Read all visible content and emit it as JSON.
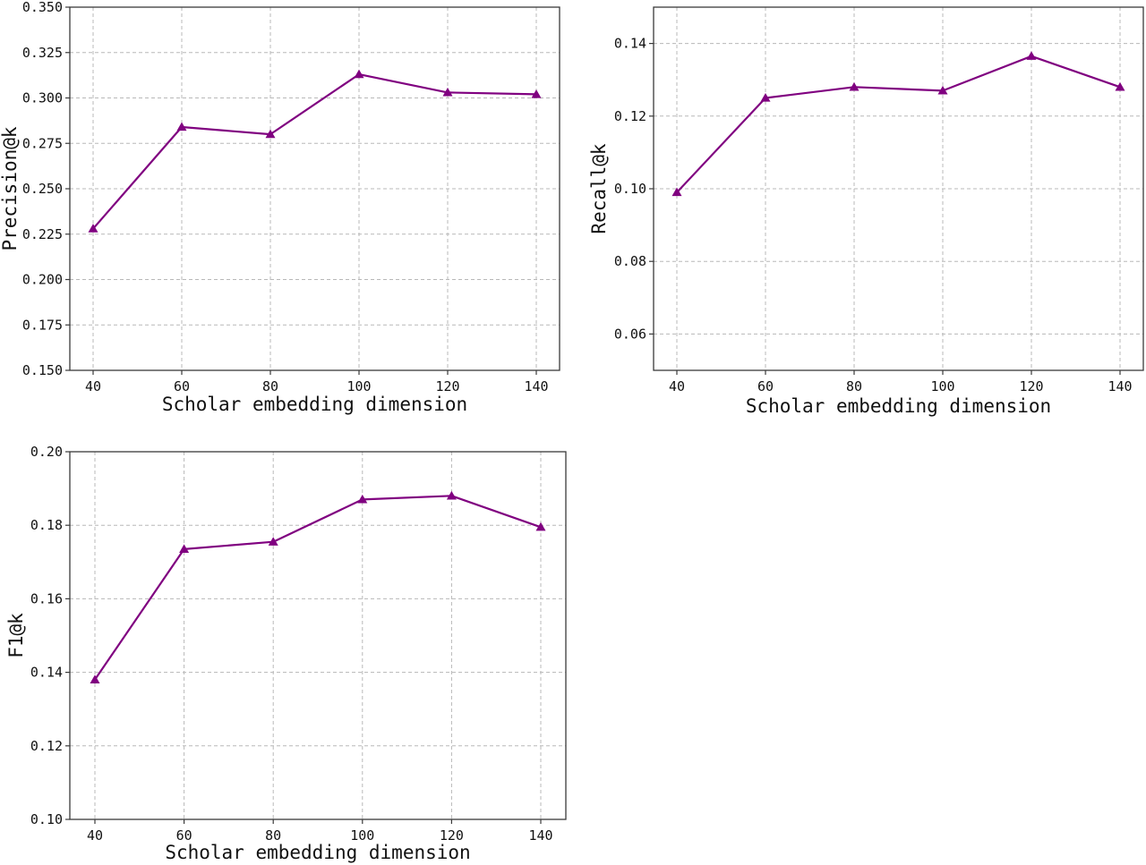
{
  "colors": {
    "series": "#800080",
    "axis": "#3a3a3a",
    "grid": "#b8b8b8"
  },
  "chart_data": [
    {
      "type": "line",
      "marker": "triangle",
      "xlabel": "Scholar embedding dimension",
      "ylabel": "Precision@k",
      "x": [
        40,
        60,
        80,
        100,
        120,
        140
      ],
      "series": [
        {
          "values": [
            0.228,
            0.284,
            0.28,
            0.313,
            0.303,
            0.302
          ]
        }
      ],
      "ylim": [
        0.15,
        0.35
      ],
      "yticks": [
        0.15,
        0.175,
        0.2,
        0.225,
        0.25,
        0.275,
        0.3,
        0.325,
        0.35
      ],
      "ytick_labels": [
        "0.150",
        "0.175",
        "0.200",
        "0.225",
        "0.250",
        "0.275",
        "0.300",
        "0.325",
        "0.350"
      ],
      "grid": true
    },
    {
      "type": "line",
      "marker": "triangle",
      "xlabel": "Scholar embedding dimension",
      "ylabel": "Recall@k",
      "x": [
        40,
        60,
        80,
        100,
        120,
        140
      ],
      "series": [
        {
          "values": [
            0.099,
            0.125,
            0.128,
            0.127,
            0.1365,
            0.128
          ]
        }
      ],
      "ylim": [
        0.05,
        0.15
      ],
      "yticks": [
        0.06,
        0.08,
        0.1,
        0.12,
        0.14
      ],
      "ytick_labels": [
        "0.06",
        "0.08",
        "0.10",
        "0.12",
        "0.14"
      ],
      "grid": true
    },
    {
      "type": "line",
      "marker": "triangle",
      "xlabel": "Scholar embedding dimension",
      "ylabel": "F1@k",
      "x": [
        40,
        60,
        80,
        100,
        120,
        140
      ],
      "series": [
        {
          "values": [
            0.138,
            0.1735,
            0.1755,
            0.187,
            0.188,
            0.1795
          ]
        }
      ],
      "ylim": [
        0.1,
        0.2
      ],
      "yticks": [
        0.1,
        0.12,
        0.14,
        0.16,
        0.18,
        0.2
      ],
      "ytick_labels": [
        "0.10",
        "0.12",
        "0.14",
        "0.16",
        "0.18",
        "0.20"
      ],
      "grid": true
    }
  ]
}
